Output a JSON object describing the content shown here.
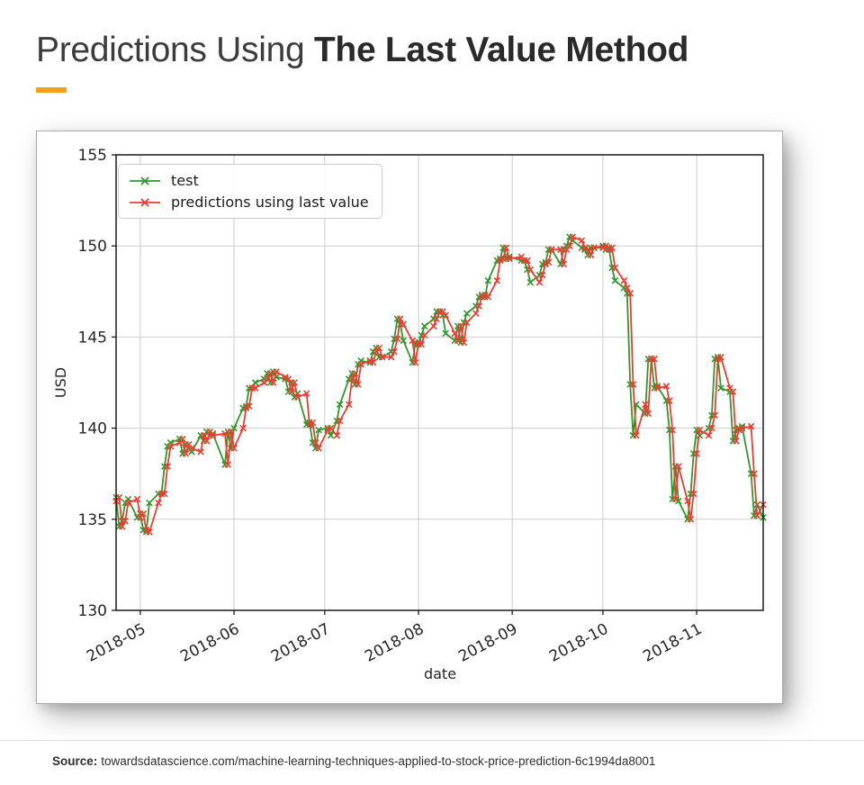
{
  "title": {
    "light": "Predictions Using ",
    "bold": "The Last Value Method"
  },
  "accent_color": "#F5A01B",
  "footer": {
    "source_label": "Source:",
    "source_text": "towardsdatascience.com/machine-learning-techniques-applied-to-stock-price-prediction-6c1994da8001"
  },
  "chart_data": {
    "type": "line",
    "title": "",
    "xlabel": "date",
    "ylabel": "USD",
    "ylim": [
      130,
      155
    ],
    "yticks": [
      130,
      135,
      140,
      145,
      150,
      155
    ],
    "grid": true,
    "legend_position": "upper left",
    "marker": "x",
    "x_range": [
      "2018-04-23",
      "2018-11-23"
    ],
    "xticks": [
      {
        "label": "2018-05",
        "date": "2018-05-01"
      },
      {
        "label": "2018-06",
        "date": "2018-06-01"
      },
      {
        "label": "2018-07",
        "date": "2018-07-01"
      },
      {
        "label": "2018-08",
        "date": "2018-08-01"
      },
      {
        "label": "2018-09",
        "date": "2018-09-01"
      },
      {
        "label": "2018-10",
        "date": "2018-10-01"
      },
      {
        "label": "2018-11",
        "date": "2018-11-01"
      }
    ],
    "dates": [
      "2018-04-23",
      "2018-04-24",
      "2018-04-25",
      "2018-04-26",
      "2018-04-27",
      "2018-04-30",
      "2018-05-01",
      "2018-05-02",
      "2018-05-03",
      "2018-05-04",
      "2018-05-07",
      "2018-05-08",
      "2018-05-09",
      "2018-05-10",
      "2018-05-11",
      "2018-05-14",
      "2018-05-15",
      "2018-05-16",
      "2018-05-17",
      "2018-05-18",
      "2018-05-21",
      "2018-05-22",
      "2018-05-23",
      "2018-05-24",
      "2018-05-25",
      "2018-05-29",
      "2018-05-30",
      "2018-05-31",
      "2018-06-01",
      "2018-06-04",
      "2018-06-05",
      "2018-06-06",
      "2018-06-07",
      "2018-06-08",
      "2018-06-11",
      "2018-06-12",
      "2018-06-13",
      "2018-06-14",
      "2018-06-15",
      "2018-06-18",
      "2018-06-19",
      "2018-06-20",
      "2018-06-21",
      "2018-06-22",
      "2018-06-25",
      "2018-06-26",
      "2018-06-27",
      "2018-06-28",
      "2018-06-29",
      "2018-07-02",
      "2018-07-03",
      "2018-07-05",
      "2018-07-06",
      "2018-07-09",
      "2018-07-10",
      "2018-07-11",
      "2018-07-12",
      "2018-07-13",
      "2018-07-16",
      "2018-07-17",
      "2018-07-18",
      "2018-07-19",
      "2018-07-20",
      "2018-07-23",
      "2018-07-24",
      "2018-07-25",
      "2018-07-26",
      "2018-07-27",
      "2018-07-30",
      "2018-07-31",
      "2018-08-01",
      "2018-08-02",
      "2018-08-03",
      "2018-08-06",
      "2018-08-07",
      "2018-08-08",
      "2018-08-09",
      "2018-08-10",
      "2018-08-13",
      "2018-08-14",
      "2018-08-15",
      "2018-08-16",
      "2018-08-17",
      "2018-08-20",
      "2018-08-21",
      "2018-08-22",
      "2018-08-23",
      "2018-08-24",
      "2018-08-27",
      "2018-08-28",
      "2018-08-29",
      "2018-08-30",
      "2018-08-31",
      "2018-09-04",
      "2018-09-05",
      "2018-09-06",
      "2018-09-07",
      "2018-09-10",
      "2018-09-11",
      "2018-09-12",
      "2018-09-13",
      "2018-09-14",
      "2018-09-17",
      "2018-09-18",
      "2018-09-19",
      "2018-09-20",
      "2018-09-21",
      "2018-09-24",
      "2018-09-25",
      "2018-09-26",
      "2018-09-27",
      "2018-09-28",
      "2018-10-01",
      "2018-10-02",
      "2018-10-03",
      "2018-10-04",
      "2018-10-05",
      "2018-10-08",
      "2018-10-09",
      "2018-10-10",
      "2018-10-11",
      "2018-10-12",
      "2018-10-15",
      "2018-10-16",
      "2018-10-17",
      "2018-10-18",
      "2018-10-19",
      "2018-10-22",
      "2018-10-23",
      "2018-10-24",
      "2018-10-25",
      "2018-10-26",
      "2018-10-29",
      "2018-10-30",
      "2018-10-31",
      "2018-11-01",
      "2018-11-02",
      "2018-11-05",
      "2018-11-06",
      "2018-11-07",
      "2018-11-08",
      "2018-11-09",
      "2018-11-12",
      "2018-11-13",
      "2018-11-14",
      "2018-11-15",
      "2018-11-16",
      "2018-11-19",
      "2018-11-20",
      "2018-11-21",
      "2018-11-23"
    ],
    "series": [
      {
        "name": "test",
        "color": "#2d9a2d",
        "values": [
          136.2,
          134.6,
          134.9,
          135.9,
          136.1,
          135.1,
          135.3,
          134.4,
          134.3,
          135.9,
          136.4,
          136.4,
          137.9,
          139.0,
          139.2,
          139.4,
          138.6,
          139.1,
          138.9,
          138.7,
          139.6,
          139.3,
          139.8,
          139.6,
          139.7,
          138.0,
          139.8,
          138.9,
          140.0,
          141.1,
          141.2,
          142.2,
          142.2,
          142.5,
          142.7,
          143.0,
          142.5,
          143.1,
          142.8,
          142.7,
          142.0,
          142.5,
          141.7,
          141.9,
          140.2,
          140.3,
          139.2,
          138.9,
          139.9,
          140.0,
          139.6,
          140.4,
          141.3,
          142.7,
          143.0,
          142.4,
          143.5,
          143.7,
          143.6,
          144.2,
          144.4,
          143.9,
          143.9,
          144.2,
          144.9,
          146.0,
          145.7,
          144.8,
          143.6,
          144.7,
          144.6,
          145.1,
          145.6,
          146.0,
          146.4,
          146.4,
          146.2,
          145.2,
          144.8,
          145.6,
          144.7,
          145.8,
          146.3,
          146.7,
          147.2,
          147.3,
          147.2,
          148.1,
          149.2,
          149.3,
          149.9,
          149.3,
          149.4,
          149.2,
          149.2,
          148.7,
          148.0,
          148.4,
          149.0,
          149.1,
          149.8,
          149.8,
          149.0,
          149.8,
          150.0,
          150.5,
          150.3,
          149.9,
          149.8,
          149.5,
          149.9,
          149.9,
          150.0,
          149.8,
          149.9,
          148.8,
          148.1,
          147.7,
          147.4,
          142.4,
          139.6,
          141.3,
          140.8,
          143.8,
          143.8,
          142.2,
          142.3,
          141.5,
          139.9,
          136.1,
          137.9,
          136.0,
          135.0,
          136.4,
          138.6,
          139.9,
          139.6,
          140.0,
          140.7,
          143.8,
          143.9,
          142.2,
          142.0,
          139.3,
          139.9,
          140.0,
          140.1,
          137.5,
          135.2,
          135.8,
          135.1
        ]
      },
      {
        "name": "predictions using last value",
        "color": "#f23b30",
        "values": [
          136.0,
          136.2,
          134.6,
          134.9,
          135.9,
          136.1,
          135.1,
          135.3,
          134.4,
          134.3,
          135.9,
          136.4,
          136.4,
          137.9,
          139.0,
          139.2,
          139.4,
          138.6,
          139.1,
          138.9,
          138.7,
          139.6,
          139.3,
          139.8,
          139.6,
          139.7,
          138.0,
          139.8,
          138.9,
          140.0,
          141.1,
          141.2,
          142.2,
          142.2,
          142.5,
          142.7,
          143.0,
          142.5,
          143.1,
          142.8,
          142.7,
          142.0,
          142.5,
          141.7,
          141.9,
          140.2,
          140.3,
          139.2,
          138.9,
          139.9,
          140.0,
          139.6,
          140.4,
          141.3,
          142.7,
          143.0,
          142.4,
          143.5,
          143.7,
          143.6,
          144.2,
          144.4,
          143.9,
          143.9,
          144.2,
          144.9,
          146.0,
          145.7,
          144.8,
          143.6,
          144.7,
          144.6,
          145.1,
          145.6,
          146.0,
          146.4,
          146.4,
          146.2,
          145.2,
          144.8,
          145.6,
          144.7,
          145.8,
          146.3,
          146.7,
          147.2,
          147.3,
          147.2,
          148.1,
          149.2,
          149.3,
          149.9,
          149.3,
          149.4,
          149.2,
          149.2,
          148.7,
          148.0,
          148.4,
          149.0,
          149.1,
          149.8,
          149.8,
          149.0,
          149.8,
          150.0,
          150.5,
          150.3,
          149.9,
          149.8,
          149.5,
          149.9,
          149.9,
          150.0,
          149.8,
          149.9,
          148.8,
          148.1,
          147.7,
          147.4,
          142.4,
          139.6,
          141.3,
          140.8,
          143.8,
          143.8,
          142.2,
          142.3,
          141.5,
          139.9,
          136.1,
          137.9,
          136.0,
          135.0,
          136.4,
          138.6,
          139.9,
          139.6,
          140.0,
          140.7,
          143.8,
          143.9,
          142.2,
          142.0,
          139.3,
          139.9,
          140.0,
          140.1,
          137.5,
          135.2,
          135.8
        ]
      }
    ]
  }
}
